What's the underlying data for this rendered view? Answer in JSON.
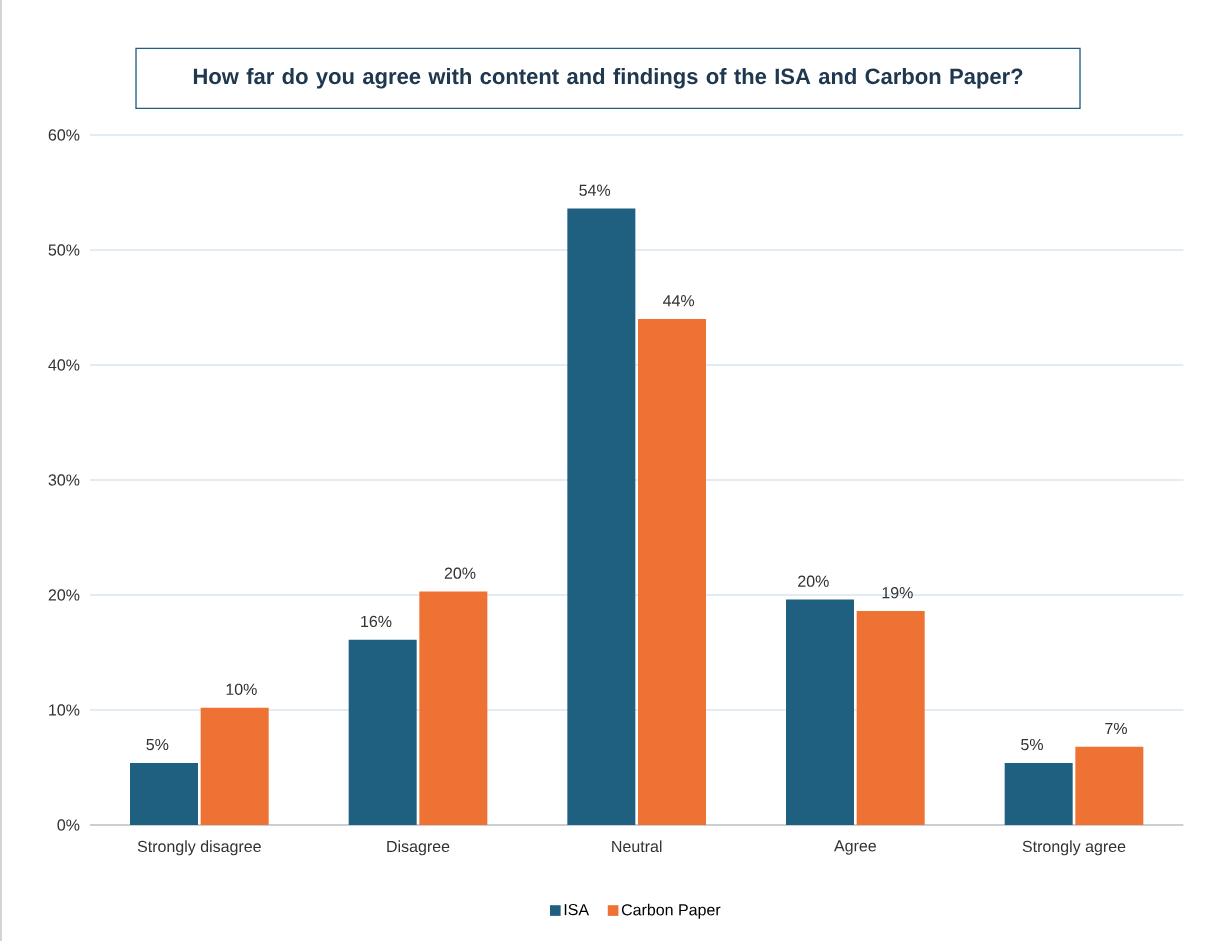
{
  "chart_data": {
    "type": "bar",
    "title": "How far do you agree with content and findings of the ISA and Carbon Paper?",
    "categories": [
      "Strongly disagree",
      "Disagree",
      "Neutral",
      "Agree",
      "Strongly agree"
    ],
    "series": [
      {
        "name": "ISA",
        "color": "#1f5f80",
        "values": [
          5.4,
          16.1,
          53.6,
          19.6,
          5.4
        ],
        "value_labels": [
          "5%",
          "16%",
          "54%",
          "20%",
          "5%"
        ]
      },
      {
        "name": "Carbon Paper",
        "color": "#ee7233",
        "values": [
          10.2,
          20.3,
          44.0,
          18.6,
          6.8
        ],
        "value_labels": [
          "10%",
          "20%",
          "44%",
          "19%",
          "7%"
        ]
      }
    ],
    "ylim": [
      0,
      60
    ],
    "yticks": [
      {
        "value": 0,
        "label": "0%"
      },
      {
        "value": 10,
        "label": "10%"
      },
      {
        "value": 20,
        "label": "20%"
      },
      {
        "value": 30,
        "label": "30%"
      },
      {
        "value": 40,
        "label": "40%"
      },
      {
        "value": 50,
        "label": "50%"
      },
      {
        "value": 60,
        "label": "60%"
      }
    ],
    "grid": "y",
    "legend": "bottom"
  }
}
